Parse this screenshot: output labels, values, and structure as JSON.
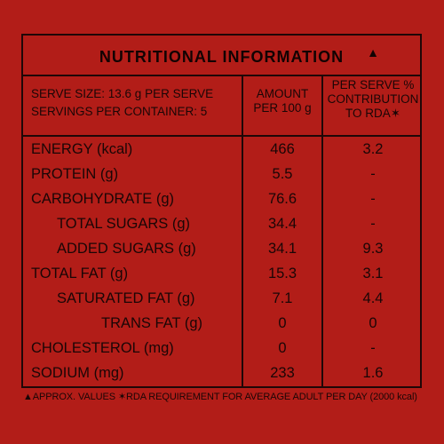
{
  "title": "NUTRITIONAL INFORMATION",
  "title_mark": "▲",
  "header": {
    "serve_size": "SERVE SIZE: 13.6 g PER SERVE",
    "servings": "SERVINGS PER CONTAINER: 5",
    "amount_line1": "AMOUNT",
    "amount_line2": "PER 100 g",
    "rda_line1": "PER SERVE %",
    "rda_line2": "CONTRIBUTION",
    "rda_line3": "TO RDA✶"
  },
  "rows": [
    {
      "label": "ENERGY (kcal)",
      "per100": "466",
      "rda": "3.2"
    },
    {
      "label": "PROTEIN (g)",
      "per100": "5.5",
      "rda": "-"
    },
    {
      "label": "CARBOHYDRATE (g)",
      "per100": "76.6",
      "rda": "-"
    },
    {
      "label": "TOTAL SUGARS (g)",
      "per100": "34.4",
      "rda": "-"
    },
    {
      "label": "ADDED SUGARS (g)",
      "per100": "34.1",
      "rda": "9.3"
    },
    {
      "label": "TOTAL FAT (g)",
      "per100": "15.3",
      "rda": "3.1"
    },
    {
      "label": "SATURATED FAT (g)",
      "per100": "7.1",
      "rda": "4.4"
    },
    {
      "label": "TRANS FAT (g)",
      "per100": "0",
      "rda": "0"
    },
    {
      "label": "CHOLESTEROL (mg)",
      "per100": "0",
      "rda": "-"
    },
    {
      "label": "SODIUM (mg)",
      "per100": "233",
      "rda": "1.6"
    }
  ],
  "footnote": "▲APPROX. VALUES ✶RDA REQUIREMENT FOR AVERAGE ADULT PER DAY (2000 kcal)",
  "colors": {
    "background": "#b21d18",
    "ink": "#1a0606"
  }
}
